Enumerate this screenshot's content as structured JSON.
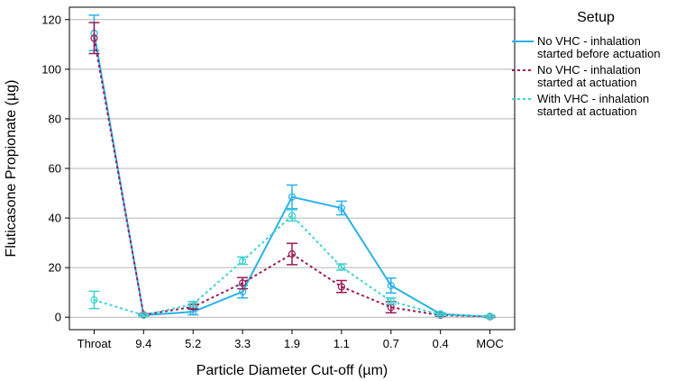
{
  "chart_data": {
    "type": "line",
    "title": "",
    "xlabel": "Particle Diameter Cut-off (µm)",
    "ylabel": "Fluticasone Propionate (µg)",
    "categories": [
      "Throat",
      "9.4",
      "5.2",
      "3.3",
      "1.9",
      "1.1",
      "0.7",
      "0.4",
      "MOC"
    ],
    "ylim": [
      -5,
      125
    ],
    "yticks": [
      0,
      20,
      40,
      60,
      80,
      100,
      120
    ],
    "grid": "horizontal",
    "legend": {
      "title": "Setup",
      "position": "right"
    },
    "series": [
      {
        "name": "No VHC - inhalation started before actuation",
        "label_lines": [
          "No VHC - inhalation",
          "started before actuation"
        ],
        "color": "#29b2e8",
        "style": "solid",
        "values": [
          114.5,
          0.8,
          2.2,
          10.3,
          48.5,
          44.0,
          12.8,
          1.3,
          0.2
        ],
        "err_low": [
          107.5,
          0.5,
          1.0,
          7.8,
          43.8,
          41.3,
          9.8,
          0.8,
          -0.2
        ],
        "err_high": [
          121.8,
          1.2,
          3.5,
          12.9,
          53.3,
          46.8,
          15.8,
          1.8,
          0.6
        ]
      },
      {
        "name": "No VHC - inhalation started at actuation",
        "label_lines": [
          "No VHC - inhalation",
          "started at actuation"
        ],
        "color": "#9b1a55",
        "style": "dotted",
        "values": [
          112.5,
          1.0,
          4.2,
          13.8,
          25.5,
          12.3,
          4.0,
          0.8,
          0.3
        ],
        "err_low": [
          106.3,
          0.7,
          3.3,
          11.5,
          21.2,
          10.0,
          1.8,
          0.4,
          0.0
        ],
        "err_high": [
          118.8,
          1.4,
          5.2,
          16.0,
          29.8,
          14.8,
          6.3,
          1.2,
          0.6
        ]
      },
      {
        "name": "With VHC - inhalation started at actuation",
        "label_lines": [
          "With VHC - inhalation",
          "started at actuation"
        ],
        "color": "#40d3cf",
        "style": "dotted",
        "values": [
          7.0,
          0.8,
          5.3,
          22.7,
          41.0,
          20.2,
          6.5,
          1.0,
          0.4
        ],
        "err_low": [
          3.5,
          0.5,
          4.3,
          21.3,
          38.8,
          19.0,
          5.3,
          0.6,
          0.1
        ],
        "err_high": [
          10.5,
          1.2,
          6.3,
          24.3,
          43.3,
          21.5,
          7.8,
          1.4,
          0.8
        ]
      }
    ]
  }
}
